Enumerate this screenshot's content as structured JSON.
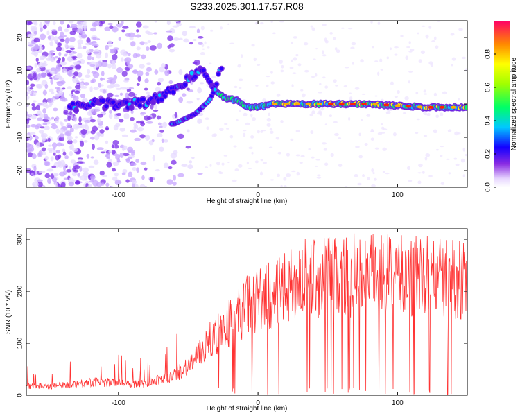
{
  "title": "S233.2025.301.17.57.R08",
  "chart_data": [
    {
      "type": "heatmap",
      "xlabel": "Height of straight line (km)",
      "ylabel": "Frequency (Hz)",
      "xlim": [
        -166,
        150
      ],
      "ylim": [
        -25,
        25
      ],
      "xticks": [
        -100,
        0,
        100
      ],
      "yticks": [
        -20,
        -10,
        0,
        10,
        20
      ],
      "colorbar": {
        "label": "Normalized spectral amplitude",
        "range": [
          0,
          1
        ],
        "ticks": [
          0.0,
          0.2,
          0.4,
          0.6,
          0.8
        ],
        "tick_labels": [
          "0.0",
          "0.2",
          "0.4",
          "0.6",
          "0.8"
        ]
      },
      "ridge_main": [
        [
          -130,
          -1
        ],
        [
          -115,
          0
        ],
        [
          -100,
          0
        ],
        [
          -85,
          0
        ],
        [
          -70,
          2
        ],
        [
          -55,
          6
        ],
        [
          -45,
          9
        ],
        [
          -40,
          11
        ],
        [
          -35,
          6
        ],
        [
          -25,
          2
        ],
        [
          -15,
          1
        ],
        [
          -8,
          -1
        ],
        [
          0,
          -1
        ],
        [
          10,
          0
        ],
        [
          40,
          0
        ],
        [
          80,
          0
        ],
        [
          120,
          -1
        ],
        [
          150,
          -1
        ]
      ],
      "ridge_secondary": [
        [
          -60,
          -6
        ],
        [
          -50,
          -4
        ],
        [
          -45,
          -3
        ],
        [
          -35,
          1
        ],
        [
          -30,
          5
        ],
        [
          -28,
          10
        ],
        [
          -25,
          11
        ]
      ]
    },
    {
      "type": "line",
      "xlabel": "Height of straight line (km)",
      "ylabel": "SNR (10 * v/v)",
      "xlim": [
        -166,
        150
      ],
      "ylim": [
        0,
        320
      ],
      "xticks": [
        -100,
        0,
        100
      ],
      "yticks": [
        0,
        100,
        200,
        300
      ],
      "color": "#ff3333",
      "envelope": [
        [
          -166,
          20
        ],
        [
          -140,
          22
        ],
        [
          -120,
          30
        ],
        [
          -100,
          28
        ],
        [
          -80,
          25
        ],
        [
          -60,
          45
        ],
        [
          -45,
          80
        ],
        [
          -35,
          120
        ],
        [
          -25,
          150
        ],
        [
          -15,
          180
        ],
        [
          -5,
          210
        ],
        [
          5,
          220
        ],
        [
          15,
          230
        ],
        [
          25,
          250
        ],
        [
          35,
          265
        ],
        [
          50,
          270
        ],
        [
          70,
          272
        ],
        [
          90,
          270
        ],
        [
          110,
          268
        ],
        [
          130,
          265
        ],
        [
          150,
          262
        ]
      ]
    }
  ]
}
